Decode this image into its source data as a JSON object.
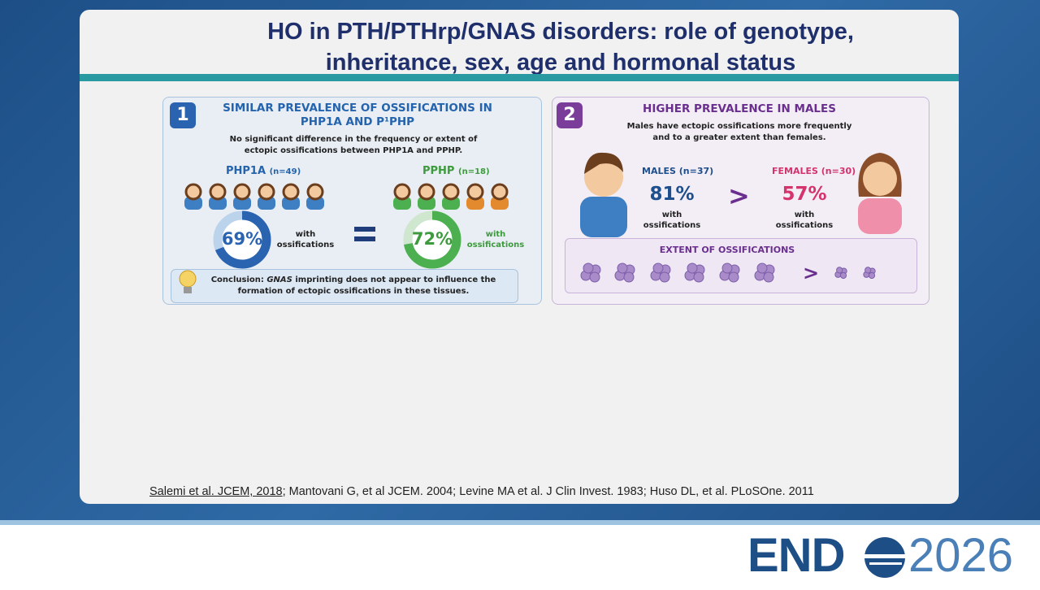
{
  "title": "HO in PTH/PTHrp/GNAS disorders: role of genotype, inheritance, sex, age and hormonal status",
  "panel1": {
    "number": "1",
    "heading": "SIMILAR PREVALENCE OF OSSIFICATIONS IN PHP1A AND P¹PHP",
    "subtitle": "No significant difference in the frequency or extent of ectopic ossifications between PHP1A and PPHP.",
    "groups": [
      {
        "name": "PHP1A",
        "n": "(n=49)",
        "percent": "69%",
        "caption": "with ossifications"
      },
      {
        "name": "PPHP",
        "n": "(n=18)",
        "percent": "72%",
        "caption": "with ossifications"
      }
    ],
    "conclusion": {
      "lead": "Conclusion:",
      "gene": "GNAS",
      "text": "imprinting does not appear to influence the formation of ectopic ossifications in these tissues."
    }
  },
  "panel2": {
    "number": "2",
    "heading": "HIGHER PREVALENCE IN MALES",
    "subtitle": "Males have ectopic ossifications more frequently and to a greater extent than females.",
    "groups": [
      {
        "name": "MALES",
        "n": "(n=37)",
        "percent": "81%",
        "caption": "with ossifications"
      },
      {
        "name": "FEMALES",
        "n": "(n=30)",
        "percent": "57%",
        "caption": "with ossifications"
      }
    ],
    "comparison": ">",
    "extent_heading": "EXTENT OF OSSIFICATIONS",
    "extent_comparison": ">"
  },
  "references": {
    "linked": "Salemi et al. JCEM, 2018",
    "rest": "; Mantovani G, et al JCEM. 2004; Levine MA et al. J Clin Invest. 1983; Huso DL, et al. PLoSOne. 2011"
  },
  "logo": {
    "left": "END",
    "right": "2026"
  }
}
